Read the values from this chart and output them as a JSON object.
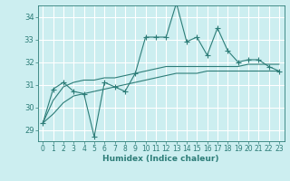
{
  "title": "",
  "xlabel": "Humidex (Indice chaleur)",
  "bg_color": "#cceef0",
  "line_color": "#2d7d78",
  "grid_color": "#ffffff",
  "xlim": [
    -0.5,
    23.5
  ],
  "ylim": [
    28.5,
    34.5
  ],
  "yticks": [
    29,
    30,
    31,
    32,
    33,
    34
  ],
  "xticks": [
    0,
    1,
    2,
    3,
    4,
    5,
    6,
    7,
    8,
    9,
    10,
    11,
    12,
    13,
    14,
    15,
    16,
    17,
    18,
    19,
    20,
    21,
    22,
    23
  ],
  "series1_x": [
    0,
    1,
    2,
    3,
    4,
    5,
    6,
    7,
    8,
    9,
    10,
    11,
    12,
    13,
    14,
    15,
    16,
    17,
    18,
    19,
    20,
    21,
    22,
    23
  ],
  "series1_y": [
    29.3,
    30.8,
    31.1,
    30.7,
    30.6,
    28.7,
    31.1,
    30.9,
    30.7,
    31.5,
    33.1,
    33.1,
    33.1,
    34.6,
    32.9,
    33.1,
    32.3,
    33.5,
    32.5,
    32.0,
    32.1,
    32.1,
    31.8,
    31.6
  ],
  "series2_x": [
    0,
    1,
    2,
    3,
    4,
    5,
    6,
    7,
    8,
    9,
    10,
    11,
    12,
    13,
    14,
    15,
    16,
    17,
    18,
    19,
    20,
    21,
    22,
    23
  ],
  "series2_y": [
    29.3,
    30.3,
    30.9,
    31.1,
    31.2,
    31.2,
    31.3,
    31.3,
    31.4,
    31.5,
    31.6,
    31.7,
    31.8,
    31.8,
    31.8,
    31.8,
    31.8,
    31.8,
    31.8,
    31.8,
    31.9,
    31.9,
    31.9,
    31.9
  ],
  "series3_x": [
    0,
    1,
    2,
    3,
    4,
    5,
    6,
    7,
    8,
    9,
    10,
    11,
    12,
    13,
    14,
    15,
    16,
    17,
    18,
    19,
    20,
    21,
    22,
    23
  ],
  "series3_y": [
    29.3,
    29.7,
    30.2,
    30.5,
    30.6,
    30.7,
    30.8,
    30.9,
    31.0,
    31.1,
    31.2,
    31.3,
    31.4,
    31.5,
    31.5,
    31.5,
    31.6,
    31.6,
    31.6,
    31.6,
    31.6,
    31.6,
    31.6,
    31.6
  ]
}
